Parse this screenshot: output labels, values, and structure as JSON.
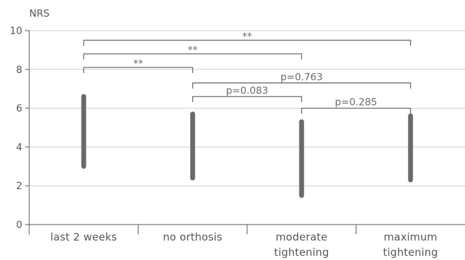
{
  "chart_data": {
    "type": "range",
    "ylabel": "NRS",
    "ylim": [
      0,
      10
    ],
    "yticks": [
      0,
      2,
      4,
      6,
      8,
      10
    ],
    "grid": true,
    "categories": [
      [
        "last 2 weeks"
      ],
      [
        "no orthosis"
      ],
      [
        "moderate",
        "tightening"
      ],
      [
        "maximum",
        "tightening"
      ]
    ],
    "ranges": [
      {
        "low": 3.0,
        "high": 6.6
      },
      {
        "low": 2.4,
        "high": 5.7
      },
      {
        "low": 1.5,
        "high": 5.3
      },
      {
        "low": 2.3,
        "high": 5.6
      }
    ],
    "comparisons": [
      {
        "from": 0,
        "to": 3,
        "y": 9.5,
        "label": "**"
      },
      {
        "from": 0,
        "to": 2,
        "y": 8.8,
        "label": "**"
      },
      {
        "from": 0,
        "to": 1,
        "y": 8.1,
        "label": "**"
      },
      {
        "from": 1,
        "to": 3,
        "y": 7.3,
        "label": "p=0.763"
      },
      {
        "from": 1,
        "to": 2,
        "y": 6.6,
        "label": "p=0.083"
      },
      {
        "from": 2,
        "to": 3,
        "y": 6.0,
        "label": "p=0.285"
      }
    ]
  }
}
